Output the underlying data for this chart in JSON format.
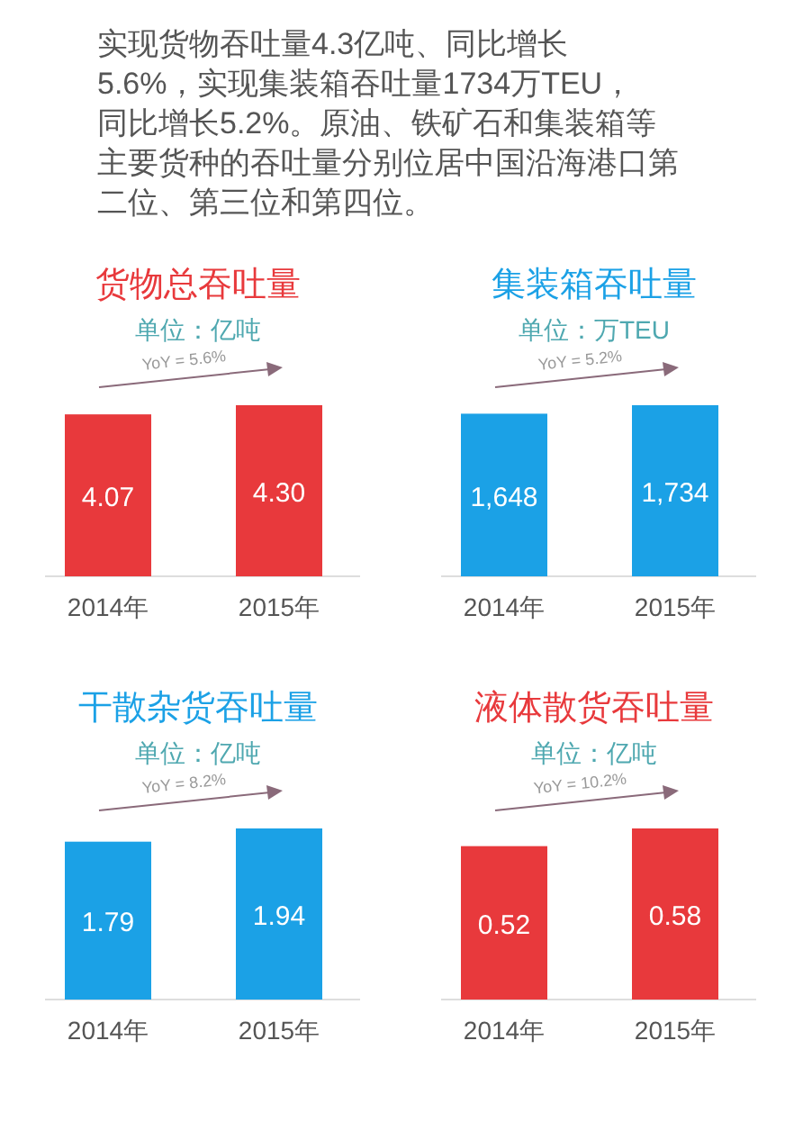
{
  "chart_data": [
    {
      "type": "other",
      "annotations": [
        "实现货物吞吐量4.3亿吨、同比增长",
        "5.6%，实现集装箱吞吐量1734万TEU，",
        "同比增长5.2%。原油、铁矿石和集装箱等",
        "主要货种的吞吐量分别位居中国沿海港口第",
        "二位、第三位和第四位。"
      ]
    },
    {
      "type": "bar",
      "title": "货物总吞吐量",
      "subtitle": "单位：亿吨",
      "annotations": [
        "YoY = 5.6%"
      ],
      "categories": [
        "2014年",
        "2015年"
      ],
      "series": [
        {
          "color": "#e8393c",
          "values": [
            4.07,
            4.3
          ],
          "value_labels": [
            "4.07",
            "4.30"
          ]
        }
      ]
    },
    {
      "type": "bar",
      "title": "集装箱吞吐量",
      "subtitle": "单位：万TEU",
      "annotations": [
        "YoY = 5.2%"
      ],
      "categories": [
        "2014年",
        "2015年"
      ],
      "series": [
        {
          "color": "#1ba1e6",
          "values": [
            1648,
            1734
          ],
          "value_labels": [
            "1,648",
            "1,734"
          ]
        }
      ]
    },
    {
      "type": "bar",
      "title": "干散杂货吞吐量",
      "subtitle": "单位：亿吨",
      "annotations": [
        "YoY = 8.2%"
      ],
      "categories": [
        "2014年",
        "2015年"
      ],
      "series": [
        {
          "color": "#1ba1e6",
          "values": [
            1.79,
            1.94
          ],
          "value_labels": [
            "1.79",
            "1.94"
          ]
        }
      ]
    },
    {
      "type": "bar",
      "title": "液体散货吞吐量",
      "subtitle": "单位：亿吨",
      "annotations": [
        "YoY = 10.2%"
      ],
      "categories": [
        "2014年",
        "2015年"
      ],
      "series": [
        {
          "color": "#e8393c",
          "values": [
            0.52,
            0.58
          ],
          "value_labels": [
            "0.52",
            "0.58"
          ]
        }
      ]
    }
  ]
}
